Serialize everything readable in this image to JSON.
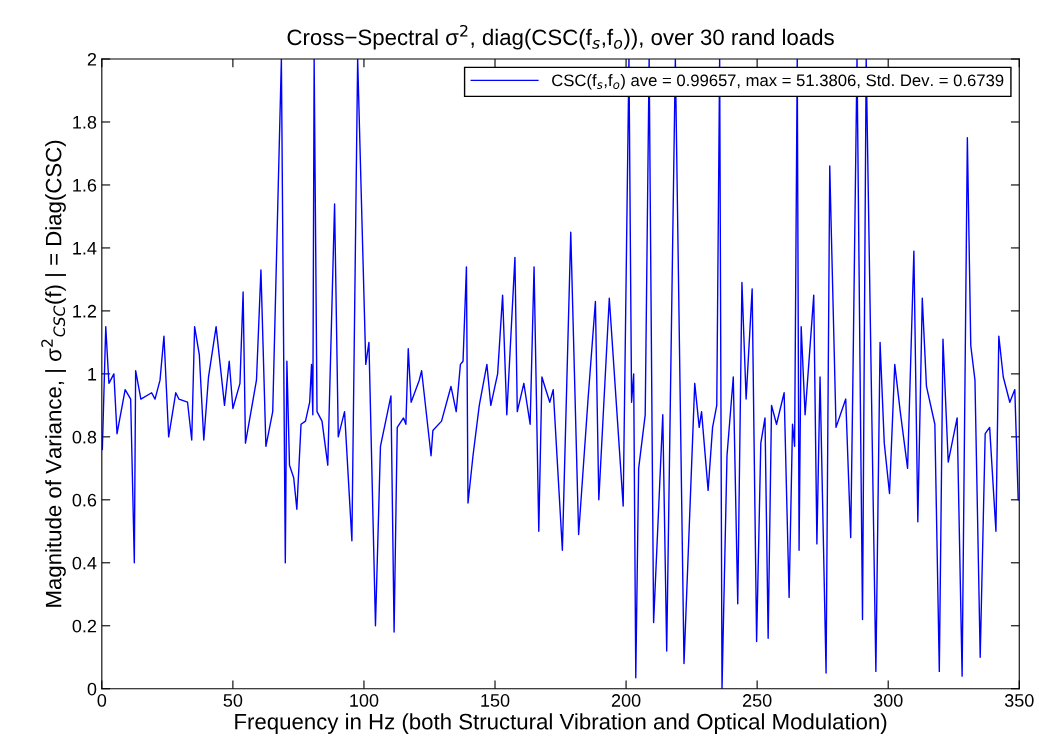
{
  "chart_data": {
    "type": "line",
    "title": "Cross−Spectral σ$^{2}$, diag(CSC(f$_{s}$,f$_{o}$)), over 30 rand loads",
    "xlabel": "Frequency in Hz (both Structural Vibration and Optical Modulation)",
    "ylabel": "Magnitude of Variance, | σ$^{2}$$_{CSC}$(f) | = Diag(CSC)",
    "xlim": [
      0,
      350
    ],
    "ylim": [
      0,
      2
    ],
    "xticks": [
      0,
      50,
      100,
      150,
      200,
      250,
      300,
      350
    ],
    "yticks": [
      0,
      0.2,
      0.4,
      0.6,
      0.8,
      1,
      1.2,
      1.4,
      1.6,
      1.8,
      2
    ],
    "grid": false,
    "legend": "top right",
    "marker": "none",
    "line_style": "solid",
    "series": [
      {
        "name": "CSC(f$_{s}$,f$_{o}$) ave = 0.99657, max = 51.3806, Std. Dev. = 0.6739",
        "color": "#0000ff",
        "x": [
          0.2,
          1.5,
          2.7,
          4.6,
          5.8,
          8.9,
          11,
          12.4,
          12.9,
          14.9,
          19,
          20.3,
          22.2,
          23.7,
          25.5,
          28.2,
          29.4,
          32.7,
          34.3,
          35.4,
          37.2,
          38.9,
          40.7,
          43.6,
          46.8,
          48.6,
          50,
          52.7,
          53.9,
          54.8,
          59,
          60.7,
          62.6,
          65.2,
          68.5,
          70,
          70.6,
          71.6,
          73.2,
          74.4,
          76,
          77.7,
          79.3,
          80,
          80.5,
          81,
          82.1,
          84,
          86.2,
          88.8,
          90.2,
          92.6,
          95.4,
          97.6,
          100.7,
          101.9,
          104.4,
          106.3,
          110.3,
          111.5,
          112.7,
          115.1,
          116,
          116.9,
          118,
          121.1,
          122,
          125.6,
          126.3,
          129.6,
          133.2,
          135.2,
          136.8,
          137.8,
          139.1,
          139.7,
          141.6,
          144,
          146.9,
          148.4,
          151,
          152.9,
          154.5,
          157.6,
          158.5,
          161,
          163.4,
          164.9,
          166.7,
          167.9,
          169,
          170.9,
          172.2,
          175.7,
          178.9,
          181.9,
          185.5,
          188.3,
          189.6,
          193.6,
          198.9,
          201.1,
          202.1,
          202.9,
          203.7,
          204.8,
          207.3,
          208.8,
          210.5,
          214,
          215.5,
          218.8,
          222.1,
          226.2,
          227.9,
          228.8,
          231.3,
          233,
          234.6,
          235.7,
          236.6,
          238.5,
          240.9,
          242.6,
          244.2,
          245.8,
          248.1,
          249.8,
          251.4,
          253,
          254.2,
          255.5,
          257.4,
          260.3,
          262.2,
          263.5,
          264.3,
          265.3,
          266,
          266.8,
          268.3,
          271.6,
          272.8,
          274,
          276.3,
          277.7,
          280.1,
          283.8,
          285.7,
          286.5,
          288.1,
          290.2,
          291.6,
          295.3,
          296.9,
          298.5,
          300.5,
          302.5,
          304.6,
          307.4,
          309.8,
          311.3,
          313,
          314.6,
          317.8,
          319.5,
          320.9,
          322.9,
          326.3,
          328.2,
          330.2,
          331.5,
          333.1,
          335.1,
          337,
          338.7,
          341.1,
          342.2,
          343.9,
          346.4,
          348.3,
          349.6
        ],
        "values": [
          0.76,
          1.15,
          0.97,
          1.0,
          0.81,
          0.95,
          0.92,
          0.4,
          1.01,
          0.92,
          0.94,
          0.92,
          0.98,
          1.12,
          0.8,
          0.94,
          0.92,
          0.91,
          0.79,
          1.15,
          1.06,
          0.79,
          0.99,
          1.15,
          0.9,
          1.04,
          0.89,
          0.97,
          1.26,
          0.78,
          0.98,
          1.33,
          0.77,
          0.88,
          2,
          0.4,
          1.04,
          0.71,
          0.67,
          0.57,
          0.84,
          0.85,
          0.91,
          1.03,
          0.87,
          2,
          0.88,
          0.85,
          0.71,
          1.54,
          0.8,
          0.88,
          0.47,
          2,
          1.03,
          1.1,
          0.2,
          0.77,
          0.93,
          0.18,
          0.83,
          0.86,
          0.84,
          1.08,
          0.91,
          0.98,
          1.01,
          0.74,
          0.82,
          0.85,
          0.96,
          0.88,
          1.03,
          1.04,
          1.34,
          0.59,
          0.74,
          0.9,
          1.03,
          0.9,
          1.0,
          1.25,
          0.87,
          1.37,
          0.88,
          0.97,
          0.84,
          1.34,
          0.5,
          0.99,
          0.96,
          0.91,
          0.95,
          0.44,
          1.45,
          0.49,
          0.92,
          1.23,
          0.6,
          1.24,
          0.58,
          2,
          0.91,
          1.0,
          0.035,
          0.7,
          0.87,
          2,
          0.21,
          0.87,
          0.12,
          2,
          0.08,
          0.97,
          0.83,
          0.88,
          0.63,
          0.83,
          0.9,
          2,
          0,
          0.74,
          0.99,
          0.27,
          1.29,
          0.92,
          1.27,
          0.15,
          0.78,
          0.86,
          0.16,
          0.9,
          0.84,
          0.94,
          0.29,
          0.84,
          0.77,
          2,
          0.44,
          1.15,
          0.87,
          1.25,
          0.46,
          0.99,
          0.05,
          1.66,
          0.83,
          0.92,
          0.48,
          0.96,
          2,
          0.22,
          2,
          0.055,
          1.1,
          0.78,
          0.62,
          1.03,
          0.88,
          0.7,
          1.39,
          0.53,
          1.24,
          0.96,
          0.84,
          0.055,
          1.11,
          0.72,
          0.86,
          0.04,
          1.75,
          1.09,
          0.98,
          0.1,
          0.81,
          0.83,
          0.5,
          1.12,
          0.99,
          0.91,
          0.95,
          0.6
        ]
      }
    ]
  }
}
